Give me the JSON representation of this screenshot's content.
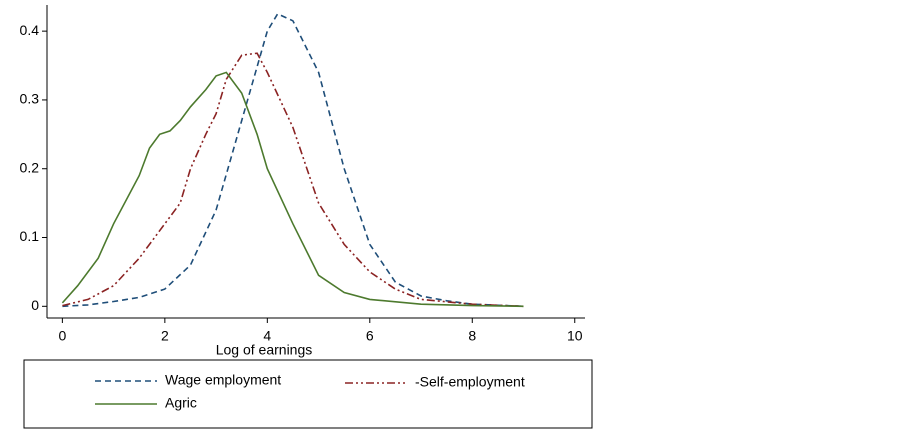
{
  "chart_data": {
    "type": "line",
    "x_label": "Log of earnings",
    "xlim": [
      -0.3,
      10.2
    ],
    "xticks": [
      0,
      2,
      4,
      6,
      8,
      10
    ],
    "ylim": [
      -0.017,
      0.438
    ],
    "yticks": [
      0,
      0.1,
      0.2,
      0.3,
      0.4
    ],
    "grid": false,
    "series": [
      {
        "name": "Wage employment",
        "color": "#1f4e79",
        "linestyle": "dashed",
        "x": [
          0,
          0.5,
          1,
          1.5,
          2,
          2.5,
          3,
          3.5,
          4,
          4.2,
          4.5,
          5,
          5.5,
          6,
          6.5,
          7,
          7.5,
          8,
          9
        ],
        "values": [
          0,
          0.002,
          0.007,
          0.013,
          0.025,
          0.06,
          0.14,
          0.27,
          0.4,
          0.425,
          0.415,
          0.34,
          0.2,
          0.09,
          0.035,
          0.015,
          0.008,
          0.003,
          0
        ]
      },
      {
        "name": "-Self-employment",
        "color": "#8b2323",
        "linestyle": "dashdot",
        "x": [
          0,
          0.5,
          1,
          1.5,
          2,
          2.3,
          2.5,
          2.8,
          3,
          3.2,
          3.5,
          3.8,
          4,
          4.5,
          5,
          5.5,
          6,
          6.5,
          7,
          8,
          9
        ],
        "values": [
          0.001,
          0.01,
          0.03,
          0.07,
          0.12,
          0.15,
          0.2,
          0.25,
          0.28,
          0.33,
          0.365,
          0.368,
          0.34,
          0.26,
          0.15,
          0.09,
          0.05,
          0.025,
          0.01,
          0.003,
          0
        ]
      },
      {
        "name": "Agric",
        "color": "#4d7a2e",
        "linestyle": "solid",
        "x": [
          0,
          0.3,
          0.7,
          1,
          1.5,
          1.7,
          1.9,
          2.1,
          2.3,
          2.5,
          2.8,
          3,
          3.2,
          3.5,
          3.8,
          4,
          4.5,
          5,
          5.5,
          6,
          7,
          8,
          9
        ],
        "values": [
          0.005,
          0.03,
          0.07,
          0.12,
          0.19,
          0.23,
          0.25,
          0.255,
          0.27,
          0.29,
          0.315,
          0.335,
          0.34,
          0.31,
          0.25,
          0.2,
          0.12,
          0.045,
          0.02,
          0.01,
          0.003,
          0.001,
          0
        ]
      }
    ]
  }
}
